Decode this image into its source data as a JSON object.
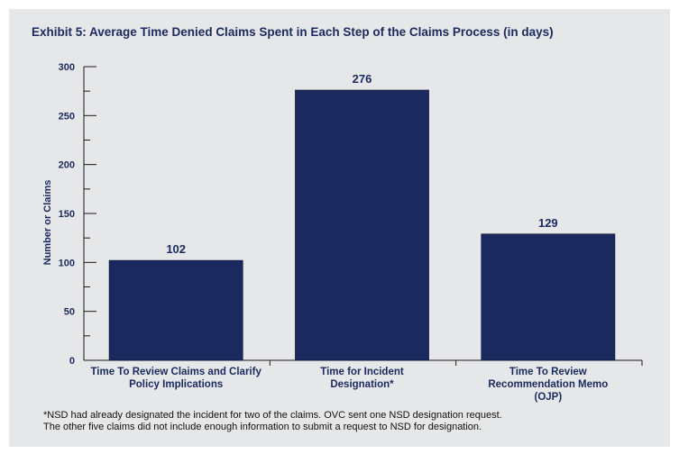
{
  "chart_data": {
    "type": "bar",
    "title": "Exhibit 5: Average Time Denied Claims Spent in Each Step of the Claims Process (in days)",
    "ylabel": "Number or Claims",
    "xlabel": "",
    "ylim": [
      0,
      300
    ],
    "yticks": [
      0,
      50,
      100,
      150,
      200,
      250,
      300
    ],
    "categories": [
      [
        "Time To Review Claims and Clarify",
        "Policy Implications"
      ],
      [
        "Time for Incident",
        "Designation*"
      ],
      [
        "Time To Review",
        "Recommendation Memo",
        "(OJP)"
      ]
    ],
    "values": [
      102,
      276,
      129
    ],
    "data_labels": [
      "102",
      "276",
      "129"
    ],
    "bar_color": "#1b2a5e",
    "grid": false
  },
  "footnotes": [
    "*NSD had already designated the incident for two of the claims. OVC sent one NSD designation request.",
    "The other five claims did not include enough information to submit a request to NSD for designation."
  ]
}
